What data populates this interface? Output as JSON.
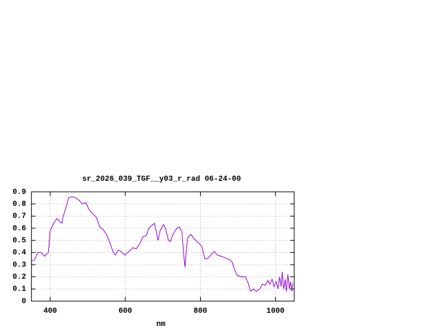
{
  "chart_data": {
    "type": "line",
    "title": "sr_2026_039_TGF__y03_r_rad 06-24-00",
    "xlabel": "nm",
    "x": [
      351,
      358,
      367,
      376,
      385,
      395,
      400,
      409,
      418,
      427,
      431,
      435,
      440,
      449,
      459,
      468,
      477,
      486,
      495,
      504,
      513,
      523,
      532,
      541,
      550,
      559,
      568,
      574,
      581,
      588,
      599,
      610,
      620,
      629,
      638,
      647,
      656,
      663,
      673,
      678,
      682,
      687,
      693,
      702,
      707,
      715,
      720,
      727,
      737,
      744,
      751,
      755,
      759,
      762,
      766,
      775,
      784,
      795,
      804,
      812,
      819,
      828,
      837,
      845,
      855,
      863,
      870,
      879,
      885,
      892,
      899,
      910,
      920,
      927,
      934,
      941,
      949,
      958,
      965,
      973,
      980,
      985,
      991,
      996,
      1002,
      1007,
      1011,
      1015,
      1018,
      1022,
      1026,
      1029,
      1033,
      1037,
      1040,
      1044,
      1046
    ],
    "series": [
      {
        "color": "#9400d3",
        "values": [
          0.33,
          0.34,
          0.4,
          0.4,
          0.37,
          0.4,
          0.58,
          0.64,
          0.68,
          0.65,
          0.64,
          0.7,
          0.75,
          0.85,
          0.86,
          0.85,
          0.83,
          0.8,
          0.81,
          0.75,
          0.72,
          0.69,
          0.61,
          0.59,
          0.55,
          0.48,
          0.4,
          0.38,
          0.42,
          0.41,
          0.38,
          0.41,
          0.44,
          0.43,
          0.47,
          0.53,
          0.54,
          0.6,
          0.63,
          0.64,
          0.58,
          0.5,
          0.58,
          0.63,
          0.6,
          0.5,
          0.49,
          0.55,
          0.6,
          0.61,
          0.57,
          0.4,
          0.28,
          0.4,
          0.52,
          0.55,
          0.51,
          0.48,
          0.45,
          0.35,
          0.35,
          0.38,
          0.41,
          0.38,
          0.37,
          0.36,
          0.35,
          0.34,
          0.32,
          0.25,
          0.21,
          0.2,
          0.2,
          0.15,
          0.08,
          0.1,
          0.08,
          0.1,
          0.14,
          0.13,
          0.17,
          0.14,
          0.18,
          0.12,
          0.16,
          0.1,
          0.2,
          0.12,
          0.24,
          0.1,
          0.18,
          0.08,
          0.22,
          0.1,
          0.16,
          0.08,
          0.15
        ]
      }
    ],
    "xlim": [
      350,
      1050
    ],
    "ylim": [
      0,
      0.9
    ],
    "xticks": [
      400,
      600,
      800,
      1000
    ],
    "yticks": [
      0,
      0.1,
      0.2,
      0.3,
      0.4,
      0.5,
      0.6,
      0.7,
      0.8,
      0.9
    ],
    "grid": true
  }
}
